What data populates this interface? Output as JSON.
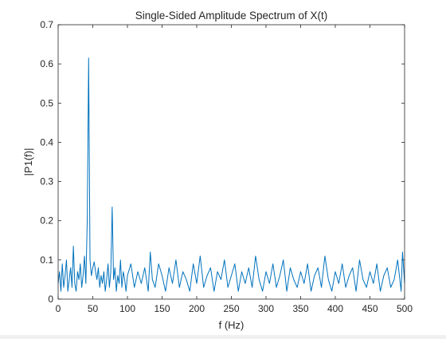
{
  "chart_data": {
    "type": "line",
    "title": "Single-Sided Amplitude Spectrum of X(t)",
    "xlabel": "f (Hz)",
    "ylabel": "|P1(f)|",
    "xlim": [
      0,
      500
    ],
    "ylim": [
      0,
      0.7
    ],
    "xticks": [
      0,
      50,
      100,
      150,
      200,
      250,
      300,
      350,
      400,
      450,
      500
    ],
    "yticks": [
      0,
      0.1,
      0.2,
      0.3,
      0.4,
      0.5,
      0.6,
      0.7
    ],
    "grid": false,
    "series_color": "#0072BD",
    "series": [
      {
        "x": [
          0,
          2,
          4,
          6,
          8,
          10,
          12,
          14,
          16,
          18,
          20,
          22,
          24,
          26,
          28,
          30,
          32,
          34,
          36,
          38,
          40,
          42,
          44,
          46,
          48,
          50,
          52,
          54,
          56,
          58,
          60,
          62,
          64,
          66,
          68,
          70,
          72,
          74,
          76,
          78,
          80,
          82,
          84,
          86,
          88,
          90,
          92,
          94,
          96,
          98,
          100,
          105,
          110,
          115,
          120,
          125,
          130,
          133,
          136,
          140,
          145,
          150,
          155,
          160,
          165,
          170,
          175,
          180,
          185,
          190,
          195,
          200,
          205,
          210,
          215,
          220,
          225,
          230,
          235,
          240,
          245,
          250,
          255,
          260,
          265,
          270,
          275,
          280,
          285,
          290,
          295,
          300,
          305,
          310,
          315,
          320,
          325,
          330,
          335,
          340,
          345,
          350,
          355,
          360,
          365,
          370,
          375,
          380,
          385,
          390,
          395,
          400,
          405,
          410,
          415,
          420,
          425,
          430,
          435,
          440,
          445,
          450,
          455,
          460,
          465,
          470,
          475,
          480,
          485,
          490,
          495,
          497,
          500
        ],
        "y": [
          0.04,
          0.07,
          0.02,
          0.09,
          0.03,
          0.06,
          0.1,
          0.02,
          0.05,
          0.08,
          0.03,
          0.135,
          0.04,
          0.02,
          0.07,
          0.05,
          0.09,
          0.03,
          0.06,
          0.11,
          0.04,
          0.2,
          0.615,
          0.1,
          0.06,
          0.08,
          0.095,
          0.07,
          0.05,
          0.08,
          0.03,
          0.06,
          0.04,
          0.07,
          0.02,
          0.05,
          0.09,
          0.03,
          0.07,
          0.235,
          0.05,
          0.08,
          0.02,
          0.06,
          0.04,
          0.1,
          0.03,
          0.07,
          0.05,
          0.02,
          0.06,
          0.09,
          0.03,
          0.07,
          0.04,
          0.08,
          0.02,
          0.12,
          0.05,
          0.03,
          0.09,
          0.06,
          0.02,
          0.08,
          0.04,
          0.1,
          0.03,
          0.07,
          0.05,
          0.02,
          0.09,
          0.04,
          0.11,
          0.03,
          0.06,
          0.08,
          0.02,
          0.07,
          0.05,
          0.1,
          0.03,
          0.06,
          0.09,
          0.02,
          0.07,
          0.04,
          0.08,
          0.03,
          0.11,
          0.05,
          0.02,
          0.07,
          0.04,
          0.09,
          0.03,
          0.06,
          0.1,
          0.02,
          0.08,
          0.05,
          0.03,
          0.07,
          0.04,
          0.09,
          0.02,
          0.06,
          0.08,
          0.03,
          0.11,
          0.05,
          0.02,
          0.07,
          0.04,
          0.09,
          0.03,
          0.06,
          0.08,
          0.02,
          0.1,
          0.05,
          0.03,
          0.07,
          0.04,
          0.09,
          0.02,
          0.06,
          0.08,
          0.03,
          0.05,
          0.1,
          0.02,
          0.12,
          0.04
        ]
      }
    ]
  }
}
